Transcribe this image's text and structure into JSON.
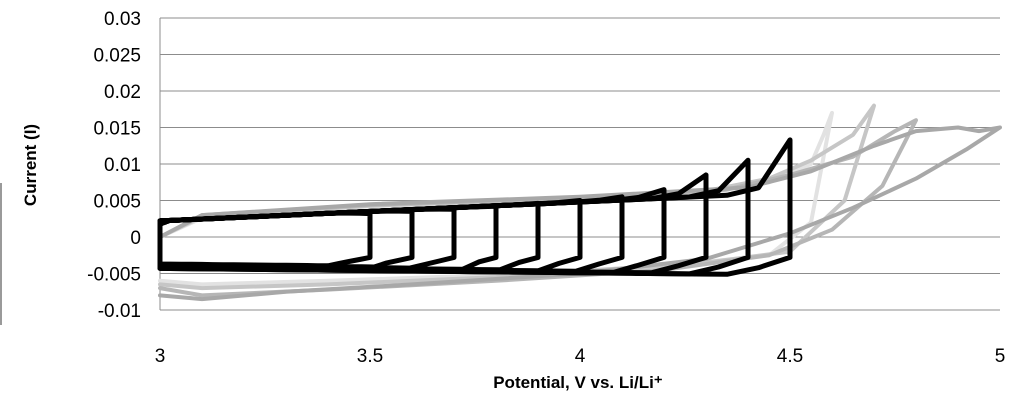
{
  "chart_data": {
    "type": "line",
    "title": "",
    "xlabel": "Potential, V vs. Li/Li⁺",
    "ylabel": "Current (I)",
    "xlim": [
      3,
      5
    ],
    "ylim": [
      -0.01,
      0.03
    ],
    "x_ticks": [
      3,
      3.5,
      4,
      4.5,
      5
    ],
    "x_tick_labels": [
      "3",
      "3.5",
      "4",
      "4.5",
      "5"
    ],
    "y_ticks": [
      -0.01,
      -0.005,
      0,
      0.005,
      0.01,
      0.015,
      0.02,
      0.025,
      0.03
    ],
    "y_tick_labels": [
      "-0.01",
      "-0.005",
      "0",
      "0.005",
      "0.01",
      "0.015",
      "0.02",
      "0.025",
      "0.03"
    ],
    "grid": "horizontal",
    "legend": "none",
    "series": [
      {
        "color": "#e2e2e2",
        "upper": [
          [
            3.0,
            0.0
          ],
          [
            3.1,
            0.0026
          ],
          [
            3.5,
            0.0042
          ],
          [
            4.0,
            0.0052
          ],
          [
            4.3,
            0.006
          ],
          [
            4.45,
            0.0075
          ],
          [
            4.55,
            0.01
          ],
          [
            4.58,
            0.014
          ],
          [
            4.6,
            0.017
          ]
        ],
        "lower": [
          [
            4.6,
            0.017
          ],
          [
            4.55,
            0.002
          ],
          [
            4.45,
            -0.0025
          ],
          [
            4.2,
            -0.004
          ],
          [
            3.8,
            -0.0052
          ],
          [
            3.4,
            -0.006
          ],
          [
            3.1,
            -0.0065
          ],
          [
            3.0,
            -0.006
          ]
        ]
      },
      {
        "color": "#c6c6c6",
        "upper": [
          [
            3.0,
            0.0
          ],
          [
            3.1,
            0.0028
          ],
          [
            3.5,
            0.0043
          ],
          [
            4.0,
            0.0053
          ],
          [
            4.3,
            0.0063
          ],
          [
            4.45,
            0.008
          ],
          [
            4.55,
            0.0105
          ],
          [
            4.65,
            0.014
          ],
          [
            4.7,
            0.018
          ]
        ],
        "lower": [
          [
            4.7,
            0.018
          ],
          [
            4.63,
            0.005
          ],
          [
            4.5,
            -0.002
          ],
          [
            4.3,
            -0.0035
          ],
          [
            3.8,
            -0.0055
          ],
          [
            3.4,
            -0.0065
          ],
          [
            3.1,
            -0.007
          ],
          [
            3.0,
            -0.0065
          ]
        ]
      },
      {
        "color": "#b6b6b6",
        "upper": [
          [
            3.0,
            0.0
          ],
          [
            3.1,
            0.003
          ],
          [
            3.5,
            0.0044
          ],
          [
            4.0,
            0.0054
          ],
          [
            4.35,
            0.0065
          ],
          [
            4.5,
            0.0085
          ],
          [
            4.65,
            0.011
          ],
          [
            4.75,
            0.0145
          ],
          [
            4.8,
            0.016
          ]
        ],
        "lower": [
          [
            4.8,
            0.016
          ],
          [
            4.72,
            0.007
          ],
          [
            4.6,
            0.001
          ],
          [
            4.45,
            -0.0025
          ],
          [
            4.2,
            -0.0045
          ],
          [
            3.8,
            -0.006
          ],
          [
            3.4,
            -0.0072
          ],
          [
            3.1,
            -0.008
          ],
          [
            3.0,
            -0.007
          ]
        ]
      },
      {
        "color": "#a8a8a8",
        "upper": [
          [
            3.0,
            0.0
          ],
          [
            3.1,
            0.003
          ],
          [
            3.5,
            0.0045
          ],
          [
            4.0,
            0.0055
          ],
          [
            4.4,
            0.0068
          ],
          [
            4.55,
            0.009
          ],
          [
            4.7,
            0.0125
          ],
          [
            4.8,
            0.0145
          ],
          [
            4.9,
            0.015
          ],
          [
            4.95,
            0.0145
          ],
          [
            5.0,
            0.015
          ]
        ],
        "lower": [
          [
            5.0,
            0.015
          ],
          [
            4.92,
            0.012
          ],
          [
            4.8,
            0.008
          ],
          [
            4.65,
            0.004
          ],
          [
            4.5,
            0.0005
          ],
          [
            4.3,
            -0.003
          ],
          [
            4.0,
            -0.005
          ],
          [
            3.6,
            -0.0065
          ],
          [
            3.3,
            -0.0075
          ],
          [
            3.1,
            -0.0085
          ],
          [
            3.0,
            -0.008
          ]
        ]
      },
      {
        "color": "#000000",
        "vertex": 3.5,
        "peak": 0.0032,
        "trough": -0.0037
      },
      {
        "color": "#000000",
        "vertex": 3.6,
        "peak": 0.0035,
        "trough": -0.0038
      },
      {
        "color": "#000000",
        "vertex": 3.7,
        "peak": 0.0038,
        "trough": -0.0039
      },
      {
        "color": "#000000",
        "vertex": 3.8,
        "peak": 0.0042,
        "trough": -0.004
      },
      {
        "color": "#000000",
        "vertex": 3.9,
        "peak": 0.0046,
        "trough": -0.004
      },
      {
        "color": "#000000",
        "vertex": 4.0,
        "peak": 0.005,
        "trough": -0.0041
      },
      {
        "color": "#000000",
        "vertex": 4.1,
        "peak": 0.0055,
        "trough": -0.0041
      },
      {
        "color": "#000000",
        "vertex": 4.2,
        "peak": 0.0065,
        "trough": -0.0042
      },
      {
        "color": "#000000",
        "vertex": 4.3,
        "peak": 0.0085,
        "trough": -0.0042
      },
      {
        "color": "#000000",
        "vertex": 4.4,
        "peak": 0.0105,
        "trough": -0.0043
      },
      {
        "color": "#000000",
        "vertex": 4.5,
        "peak": 0.0133,
        "trough": -0.0043
      }
    ]
  }
}
